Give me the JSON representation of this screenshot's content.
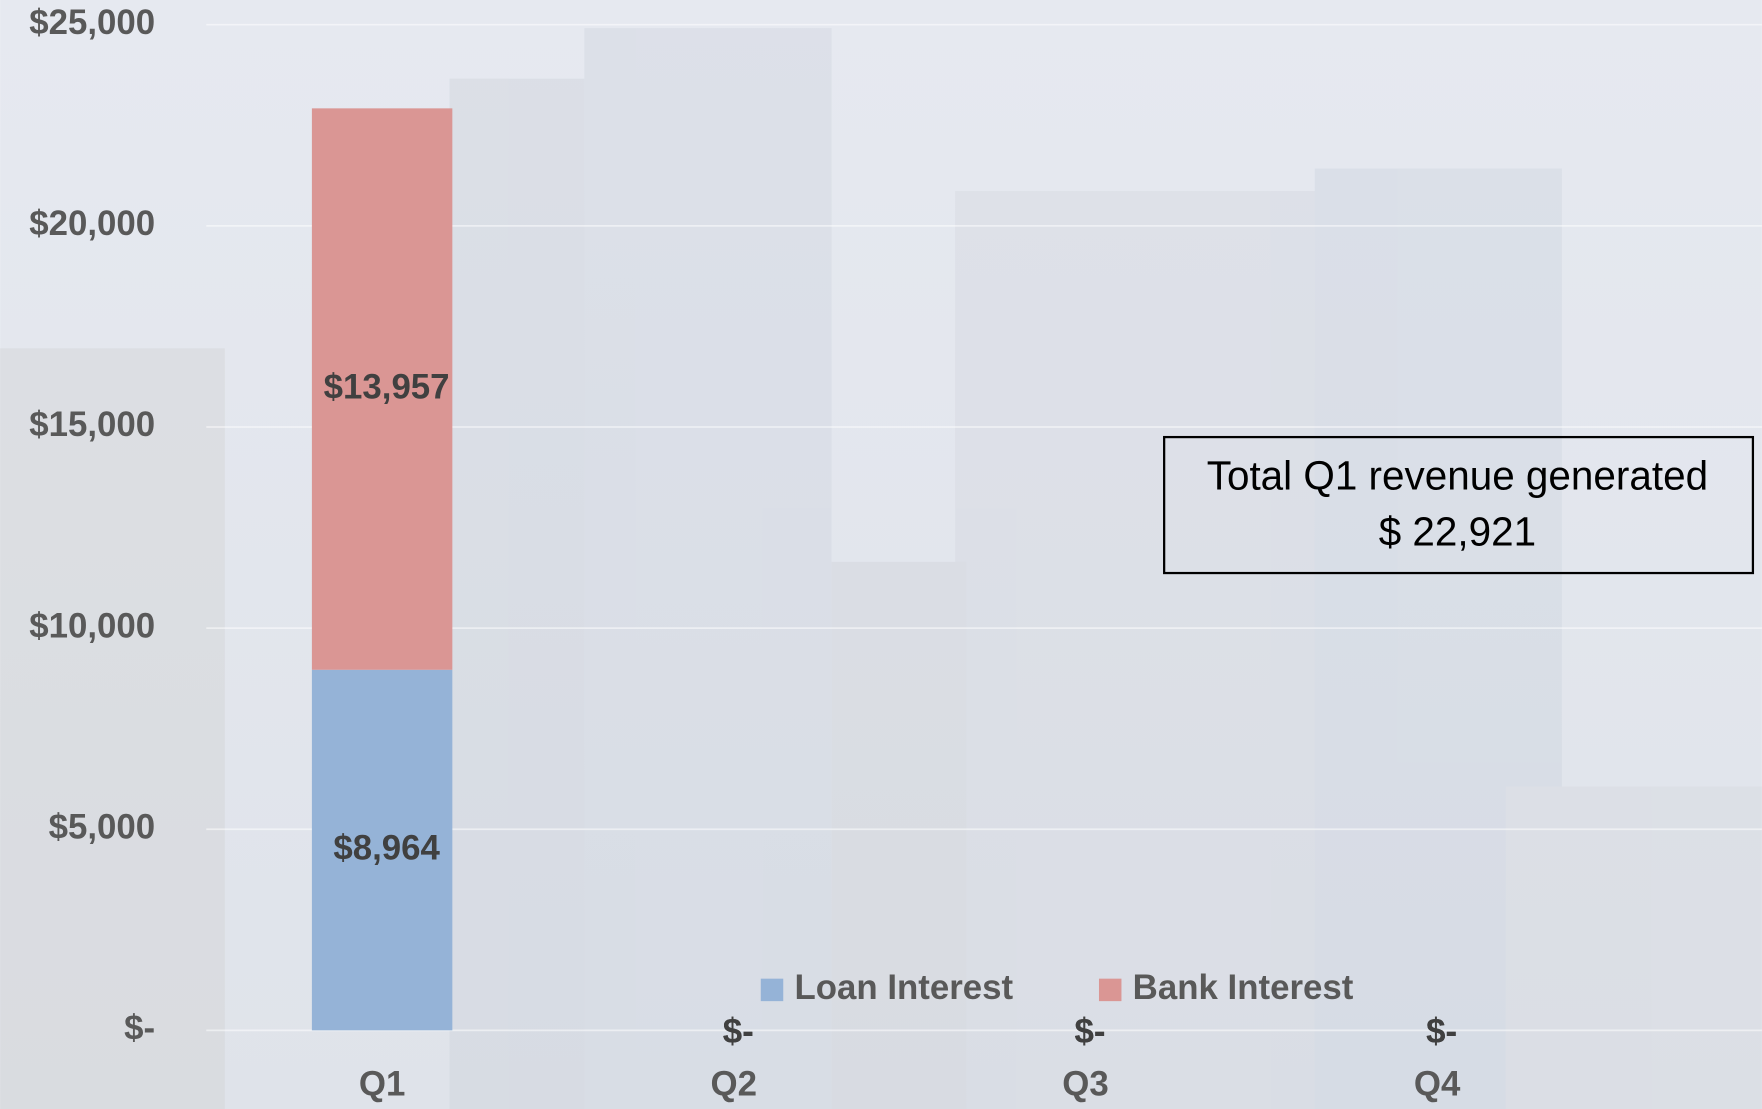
{
  "chart_data": {
    "type": "stacked_bar",
    "categories": [
      "Q1",
      "Q2",
      "Q3",
      "Q4"
    ],
    "series": [
      {
        "name": "Loan Interest",
        "color": "#95b3d7",
        "values": [
          8964,
          0,
          0,
          0
        ],
        "value_labels": [
          "$8,964",
          "$-",
          "$-",
          "$-"
        ]
      },
      {
        "name": "Bank Interest",
        "color": "#da9694",
        "values": [
          13957,
          0,
          0,
          0
        ],
        "value_labels": [
          "$13,957",
          "$-",
          "$-",
          "$-"
        ]
      }
    ],
    "ylim": [
      0,
      25000
    ],
    "yticks": [
      {
        "value": 0,
        "label": "$-"
      },
      {
        "value": 5000,
        "label": "$5,000"
      },
      {
        "value": 10000,
        "label": "$10,000"
      },
      {
        "value": 15000,
        "label": "$15,000"
      },
      {
        "value": 20000,
        "label": "$20,000"
      },
      {
        "value": 25000,
        "label": "$25,000"
      }
    ],
    "grid": true,
    "legend": "bottom",
    "annotation": [
      "Total Q1 revenue generated",
      "$ 22,921"
    ]
  }
}
